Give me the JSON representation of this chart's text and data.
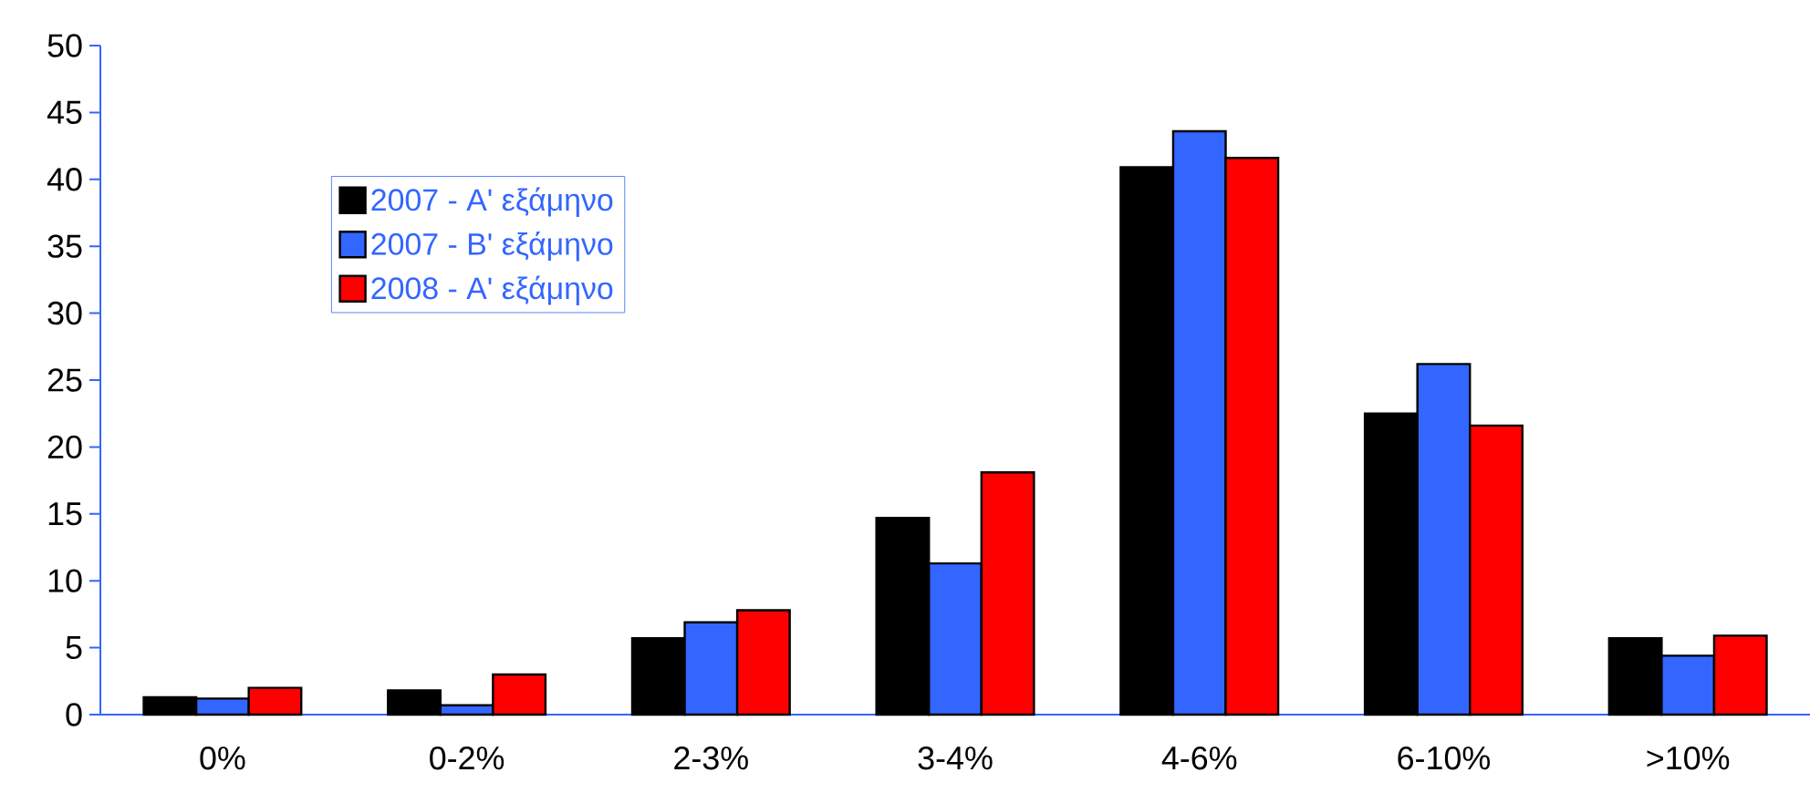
{
  "chart_data": {
    "type": "bar",
    "categories": [
      "0%",
      "0-2%",
      "2-3%",
      "3-4%",
      "4-6%",
      "6-10%",
      ">10%"
    ],
    "series": [
      {
        "name": "2007 - A' εξάμηνο",
        "color": "#000000",
        "values": [
          1.3,
          1.8,
          5.7,
          14.7,
          40.9,
          22.5,
          5.7
        ]
      },
      {
        "name": "2007 - B' εξάμηνο",
        "color": "#3366ff",
        "values": [
          1.2,
          0.7,
          6.9,
          11.3,
          43.6,
          26.2,
          4.4
        ]
      },
      {
        "name": "2008 - A' εξάμηνο",
        "color": "#ff0000",
        "values": [
          2.0,
          3.0,
          7.8,
          18.1,
          41.6,
          21.6,
          5.9
        ]
      }
    ],
    "ylim": [
      0,
      50
    ],
    "yticks": [
      0,
      5,
      10,
      15,
      20,
      25,
      30,
      35,
      40,
      45,
      50
    ],
    "legend": "top left"
  }
}
